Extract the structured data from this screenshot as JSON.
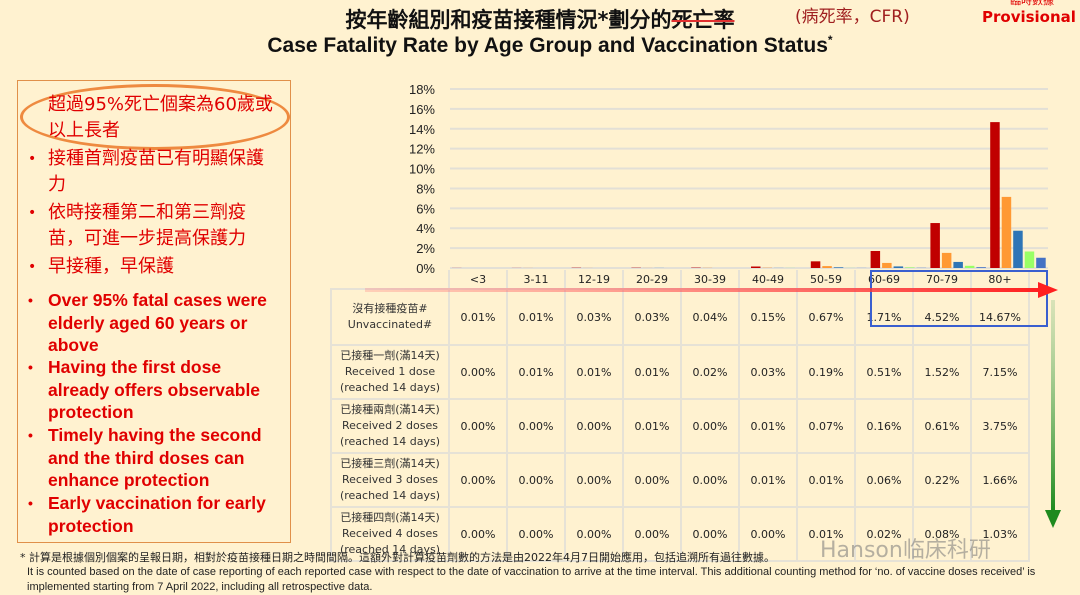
{
  "title": {
    "zh_main": "按年齡組別和疫苗接種情況*劃分的",
    "zh_struck": "死亡率",
    "zh_alt": "(病死率，CFR)",
    "en": "Case Fatality Rate by Age Group and Vaccination Status",
    "en_mark": "*",
    "provisional": "Provisional data",
    "provisional_zh": "臨時數據"
  },
  "left_panel": {
    "highlight": "超過95%死亡個案為60歲或以上長者",
    "zh_bullets": [
      "接種首劑疫苗已有明顯保護力",
      "依時接種第二和第三劑疫苗，可進一步提高保護力",
      "早接種，早保護"
    ],
    "en_bullets": [
      "Over 95% fatal cases were elderly aged 60 years or above",
      "Having the first dose already offers observable protection",
      "Timely having the second and the third doses can enhance protection",
      "Early vaccination for early protection"
    ],
    "bullet": "•"
  },
  "chart_data": {
    "type": "bar",
    "title": "",
    "xlabel": "",
    "ylabel": "",
    "ylim": [
      0,
      18
    ],
    "yticks": [
      "0%",
      "2%",
      "4%",
      "6%",
      "8%",
      "10%",
      "12%",
      "14%",
      "16%",
      "18%"
    ],
    "grid": true,
    "categories": [
      "<3",
      "3-11",
      "12-19",
      "20-29",
      "30-39",
      "40-49",
      "50-59",
      "60-69",
      "70-79",
      "80+"
    ],
    "series": [
      {
        "name": "沒有接種疫苗# Unvaccinated#",
        "zh": "沒有接種疫苗#",
        "en": "Unvaccinated#",
        "color": "#c00000",
        "values": [
          0.01,
          0.01,
          0.03,
          0.03,
          0.04,
          0.15,
          0.67,
          1.71,
          4.52,
          14.67
        ],
        "labels": [
          "0.01%",
          "0.01%",
          "0.03%",
          "0.03%",
          "0.04%",
          "0.15%",
          "0.67%",
          "1.71%",
          "4.52%",
          "14.67%"
        ]
      },
      {
        "name": "已接種一劑(滿14天) Received 1 dose (reached 14 days)",
        "zh": "已接種一劑(滿14天)",
        "en": "Received 1 dose",
        "en2": "(reached 14 days)",
        "color": "#ff9933",
        "values": [
          0.0,
          0.01,
          0.01,
          0.01,
          0.02,
          0.03,
          0.19,
          0.51,
          1.52,
          7.15
        ],
        "labels": [
          "0.00%",
          "0.01%",
          "0.01%",
          "0.01%",
          "0.02%",
          "0.03%",
          "0.19%",
          "0.51%",
          "1.52%",
          "7.15%"
        ]
      },
      {
        "name": "已接種兩劑(滿14天) Received 2 doses (reached 14 days)",
        "zh": "已接種兩劑(滿14天)",
        "en": "Received 2 doses",
        "en2": "(reached 14 days)",
        "color": "#2e75b6",
        "values": [
          0.0,
          0.0,
          0.0,
          0.01,
          0.0,
          0.01,
          0.07,
          0.16,
          0.61,
          3.75
        ],
        "labels": [
          "0.00%",
          "0.00%",
          "0.00%",
          "0.01%",
          "0.00%",
          "0.01%",
          "0.07%",
          "0.16%",
          "0.61%",
          "3.75%"
        ]
      },
      {
        "name": "已接種三劑(滿14天) Received 3 doses (reached 14 days)",
        "zh": "已接種三劑(滿14天)",
        "en": "Received 3 doses",
        "en2": "(reached 14 days)",
        "color": "#99ff66",
        "values": [
          0.0,
          0.0,
          0.0,
          0.0,
          0.0,
          0.01,
          0.01,
          0.06,
          0.22,
          1.66
        ],
        "labels": [
          "0.00%",
          "0.00%",
          "0.00%",
          "0.00%",
          "0.00%",
          "0.01%",
          "0.01%",
          "0.06%",
          "0.22%",
          "1.66%"
        ]
      },
      {
        "name": "已接種四劑(滿14天) Received 4 doses (reached 14 days)",
        "zh": "已接種四劑(滿14天)",
        "en": "Received 4 doses",
        "en2": "(reached 14 days)",
        "color": "#4472c4",
        "values": [
          0.0,
          0.0,
          0.0,
          0.0,
          0.0,
          0.0,
          0.01,
          0.02,
          0.08,
          1.03
        ],
        "labels": [
          "0.00%",
          "0.00%",
          "0.00%",
          "0.00%",
          "0.00%",
          "0.00%",
          "0.01%",
          "0.02%",
          "0.08%",
          "1.03%"
        ]
      }
    ]
  },
  "footnote": {
    "zh": "* 計算是根據個別個案的呈報日期，相對於疫苗接種日期之時間間隔。這額外對計算疫苗劑數的方法是由2022年4月7日開始應用，包括追溯所有過往數據。",
    "en": "It is counted based on the date of case reporting of each reported case with respect to the date of vaccination to arrive at the time interval. This additional counting method for ‘no. of vaccine doses received’ is implemented starting from 7 April 2022, including all retrospective data."
  },
  "watermark": "Hanson临床科研",
  "colors": {
    "background": "#fff2d0",
    "text_red": "#e00000",
    "arrow_red": "#ff3030",
    "arrow_green": "#2e8b2e",
    "highlight_box": "#3a5fcf"
  }
}
